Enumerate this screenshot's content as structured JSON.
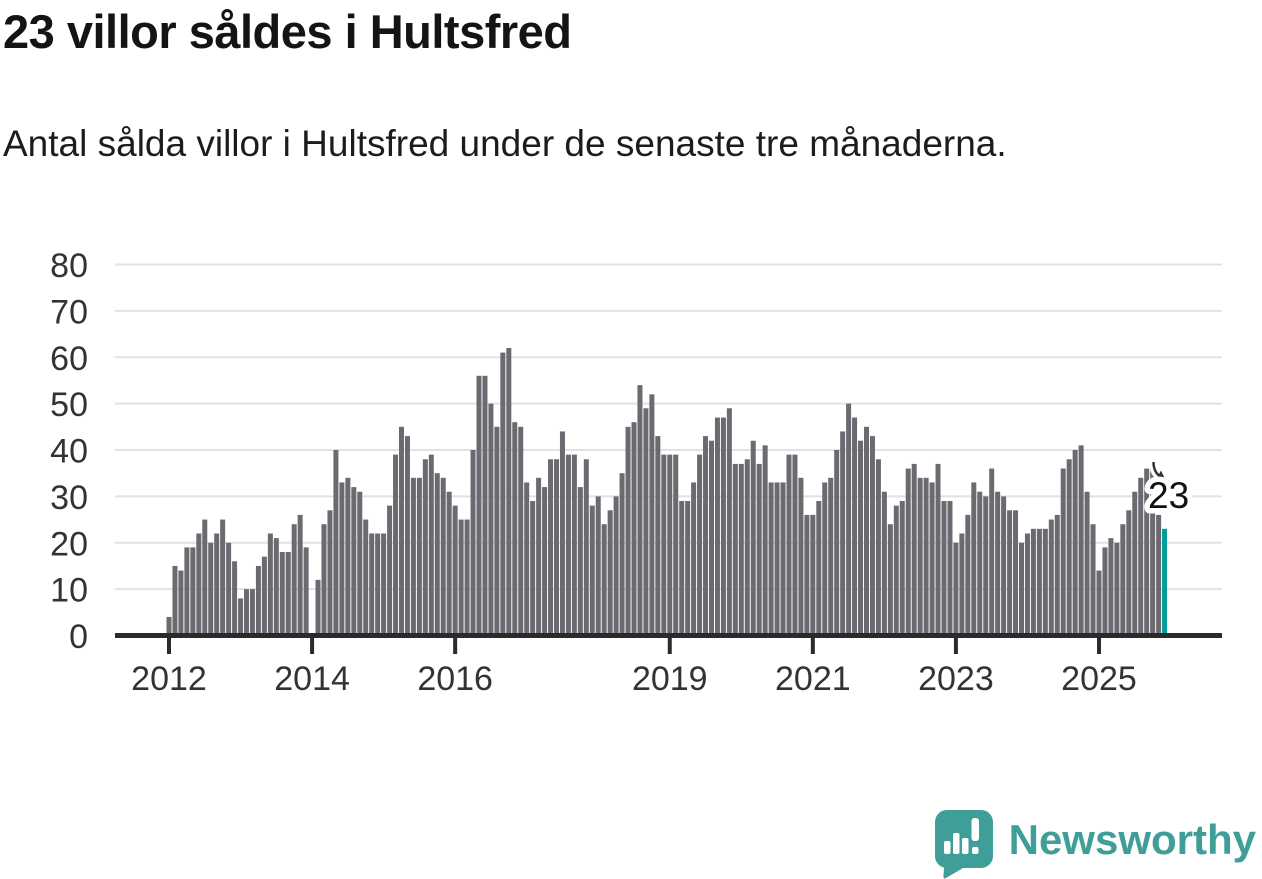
{
  "header": {
    "title": "23 villor såldes i Hultsfred",
    "subtitle": "Antal sålda villor i Hultsfred under de senaste tre månaderna."
  },
  "footer": {
    "brand": "Newsworthy"
  },
  "chart_data": {
    "type": "bar",
    "title": "23 villor såldes i Hultsfred",
    "subtitle": "Antal sålda villor i Hultsfred under de senaste tre månaderna.",
    "xlabel": "",
    "ylabel": "",
    "ylim": [
      0,
      80
    ],
    "grid": true,
    "legend": "none",
    "frequency": "monthly",
    "series_start": "2012-01",
    "series_end": "2025-12",
    "y_ticks": [
      0,
      10,
      20,
      30,
      40,
      50,
      60,
      70,
      80
    ],
    "x_tick_labels": [
      "2012",
      "2014",
      "2016",
      "2019",
      "2021",
      "2023",
      "2025"
    ],
    "x_tick_month_index": [
      0,
      24,
      48,
      84,
      108,
      132,
      156
    ],
    "values": [
      4,
      15,
      14,
      19,
      19,
      22,
      25,
      20,
      22,
      25,
      20,
      16,
      8,
      10,
      10,
      15,
      17,
      22,
      21,
      18,
      18,
      24,
      26,
      19,
      0,
      12,
      24,
      27,
      40,
      33,
      34,
      32,
      31,
      25,
      22,
      22,
      22,
      28,
      39,
      45,
      43,
      34,
      34,
      38,
      39,
      35,
      34,
      31,
      28,
      25,
      25,
      40,
      56,
      56,
      50,
      45,
      61,
      62,
      46,
      45,
      33,
      29,
      34,
      32,
      38,
      38,
      44,
      39,
      39,
      32,
      38,
      28,
      30,
      24,
      27,
      30,
      35,
      45,
      46,
      54,
      49,
      52,
      43,
      39,
      39,
      39,
      29,
      29,
      33,
      39,
      43,
      42,
      47,
      47,
      49,
      37,
      37,
      38,
      42,
      37,
      41,
      33,
      33,
      33,
      39,
      39,
      34,
      26,
      26,
      29,
      33,
      34,
      40,
      44,
      50,
      47,
      42,
      45,
      43,
      38,
      31,
      24,
      28,
      29,
      36,
      37,
      34,
      34,
      33,
      37,
      29,
      29,
      20,
      22,
      26,
      33,
      31,
      30,
      36,
      31,
      30,
      27,
      27,
      20,
      22,
      23,
      23,
      23,
      25,
      26,
      36,
      38,
      40,
      41,
      31,
      24,
      14,
      19,
      21,
      20,
      24,
      27,
      31,
      34,
      36,
      37,
      26,
      23
    ],
    "highlight_last_value": 23,
    "annotation": {
      "label": "23"
    },
    "colors": {
      "bar": "#6a6a70",
      "highlight": "#009b9b",
      "grid": "#e2e2e2",
      "axis": "#2b2b2b",
      "label": "#333333",
      "logo_teal": "#3f9e98"
    }
  }
}
